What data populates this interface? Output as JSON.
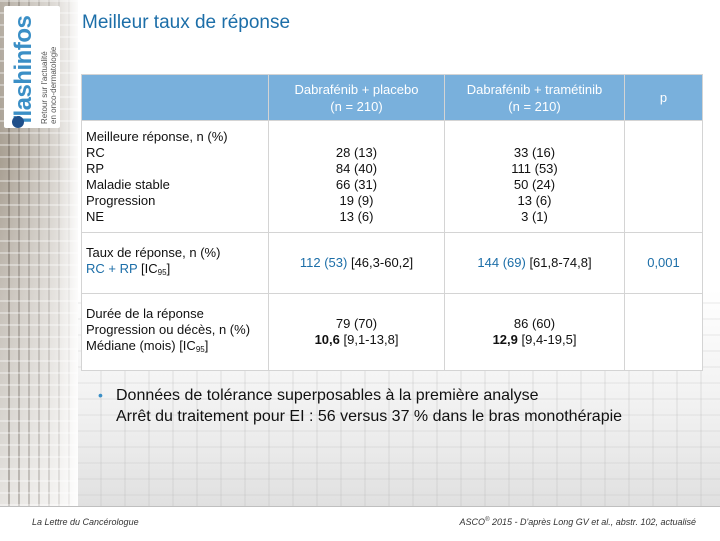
{
  "logo": {
    "brand": "flashinfos",
    "tagline_1": "Retour sur l'actualité",
    "tagline_2": "en onco-dermatologie"
  },
  "title": "Meilleur taux de réponse",
  "table": {
    "headers": {
      "col2_line1": "Dabrafénib + placebo",
      "col2_line2": "(n = 210)",
      "col3_line1": "Dabrafénib + tramétinib",
      "col3_line2": "(n = 210)",
      "col4": "p"
    },
    "best_response": {
      "label": "Meilleure réponse, n (%)",
      "rows": [
        "RC",
        "RP",
        "Maladie stable",
        "Progression",
        "NE"
      ],
      "col2": [
        "28 (13)",
        "84 (40)",
        "66 (31)",
        "19 (9)",
        "13 (6)"
      ],
      "col3": [
        "33 (16)",
        "111 (53)",
        "50 (24)",
        "13 (6)",
        "3 (1)"
      ]
    },
    "response_rate": {
      "label": "Taux de réponse, n (%)",
      "sub_prefix": "RC + RP",
      "sub_ic": "[IC",
      "sub_ic_index": "95",
      "sub_ic_end": "]",
      "col2_value": "112 (53)",
      "col2_ci": "[46,3-60,2]",
      "col3_value": "144 (69)",
      "col3_ci": "[61,8-74,8]",
      "p": "0,001"
    },
    "duration": {
      "label": "Durée de la réponse",
      "line2": "Progression ou décès, n (%)",
      "line3_prefix": "Médiane (mois) [IC",
      "line3_index": "95",
      "line3_end": "]",
      "col2_line1": "79 (70)",
      "col2_median": "10,6",
      "col2_ci": "[9,1-13,8]",
      "col3_line1": "86 (60)",
      "col3_median": "12,9",
      "col3_ci": "[9,4-19,5]"
    }
  },
  "bullets": {
    "line1": "Données de tolérance superposables à la première analyse",
    "line2": "Arrêt du traitement pour EI : 56 versus 37 % dans le bras monothérapie"
  },
  "footer": {
    "left": "La Lettre du Cancérologue",
    "right_prefix": "ASCO",
    "right_sup": "®",
    "right_rest": " 2015 - D'après Long GV et al., abstr. 102, actualisé"
  }
}
